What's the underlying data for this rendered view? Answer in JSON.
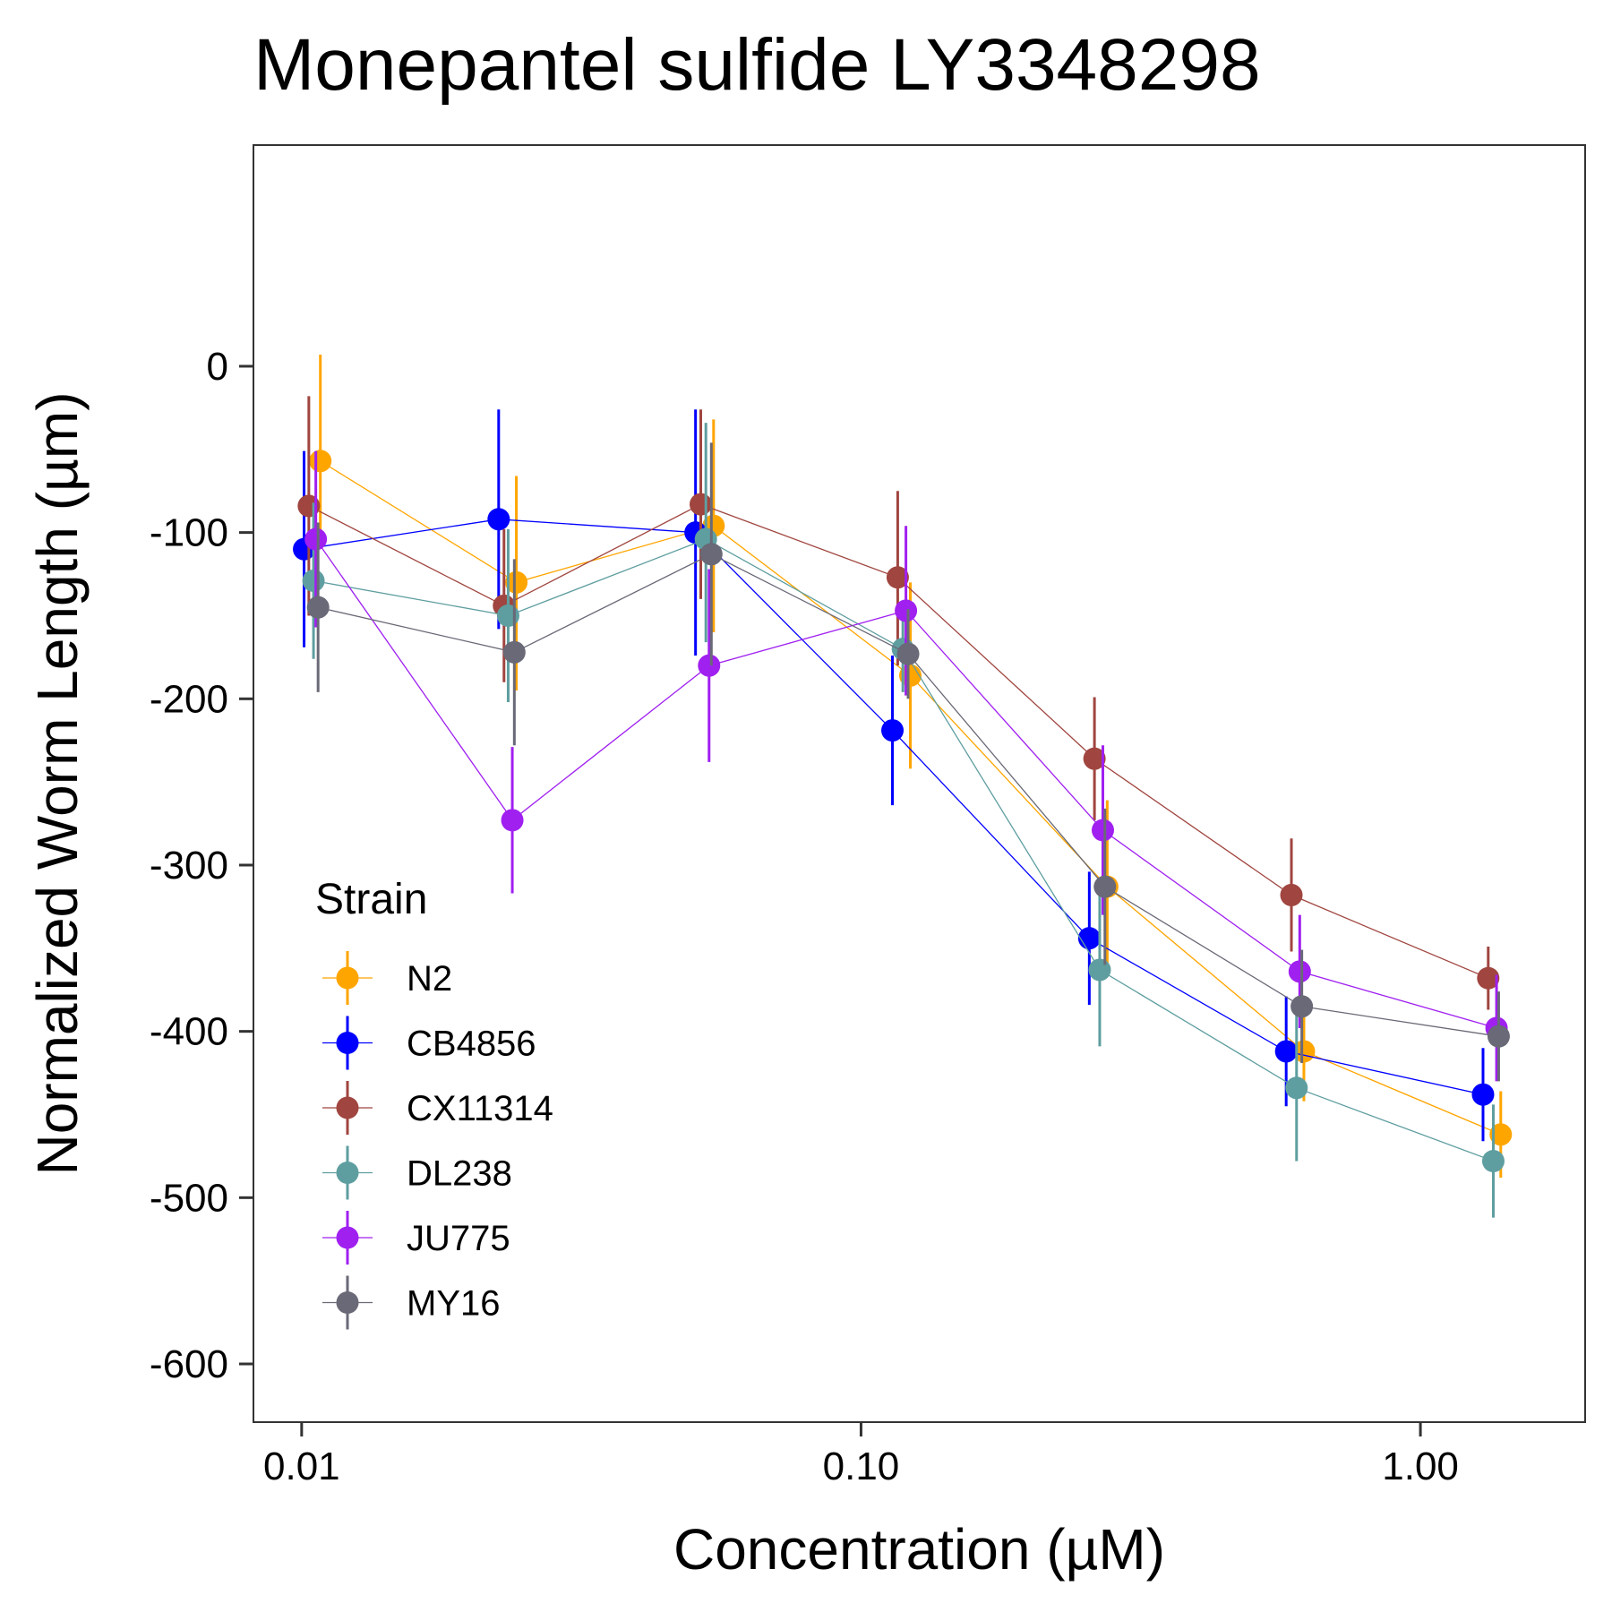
{
  "chart_data": {
    "type": "scatter",
    "title": "Monepantel sulfide LY3348298",
    "xlabel": "Concentration (µM)",
    "ylabel": "Normalized Worm Length (µm)",
    "x_scale": "log10",
    "xlim": [
      0.0082,
      1.97
    ],
    "ylim": [
      -635,
      133
    ],
    "x_ticks": [
      0.01,
      0.1,
      1.0
    ],
    "x_tick_labels": [
      "0.01",
      "0.10",
      "1.00"
    ],
    "y_ticks": [
      0,
      -100,
      -200,
      -300,
      -400,
      -500,
      -600
    ],
    "y_tick_labels": [
      "0",
      "-100",
      "-200",
      "-300",
      "-400",
      "-500",
      "-600"
    ],
    "grid": false,
    "legend": {
      "title": "Strain",
      "position": "bottom-left"
    },
    "series": [
      {
        "name": "N2",
        "color": "#FFA500",
        "x": [
          0.0108,
          0.0242,
          0.0545,
          0.1225,
          0.2755,
          0.619,
          1.392
        ],
        "y": [
          -57,
          -130,
          -96,
          -186,
          -313,
          -412,
          -462
        ],
        "ymin": [
          -108,
          -195,
          -160,
          -242,
          -365,
          -442,
          -488
        ],
        "ymax": [
          7,
          -66,
          -32,
          -130,
          -261,
          -382,
          -436
        ]
      },
      {
        "name": "CB4856",
        "color": "#0000FF",
        "x": [
          0.0101,
          0.0225,
          0.0506,
          0.1138,
          0.2559,
          0.5755,
          1.294
        ],
        "y": [
          -110,
          -92,
          -100,
          -219,
          -344,
          -412,
          -438
        ],
        "ymin": [
          -169,
          -158,
          -174,
          -264,
          -384,
          -445,
          -466
        ],
        "ymax": [
          -51,
          -26,
          -26,
          -174,
          -304,
          -379,
          -410
        ]
      },
      {
        "name": "CX11314",
        "color": "#A0453F",
        "x": [
          0.0103,
          0.023,
          0.0517,
          0.1163,
          0.2614,
          0.588,
          1.322
        ],
        "y": [
          -84,
          -144,
          -83,
          -127,
          -236,
          -318,
          -368
        ],
        "ymin": [
          -150,
          -190,
          -140,
          -180,
          -273,
          -352,
          -387
        ],
        "ymax": [
          -18,
          -98,
          -26,
          -75,
          -199,
          -284,
          -349
        ]
      },
      {
        "name": "DL238",
        "color": "#5F9EA0",
        "x": [
          0.0105,
          0.0234,
          0.0528,
          0.1188,
          0.2671,
          0.6006,
          1.35
        ],
        "y": [
          -129,
          -150,
          -104,
          -170,
          -363,
          -434,
          -478
        ],
        "ymin": [
          -176,
          -202,
          -166,
          -196,
          -409,
          -478,
          -512
        ],
        "ymax": [
          -82,
          -98,
          -34,
          -144,
          -317,
          -390,
          -444
        ]
      },
      {
        "name": "JU775",
        "color": "#A020F0",
        "x": [
          0.0106,
          0.0238,
          0.0535,
          0.1203,
          0.2706,
          0.6085,
          1.368
        ],
        "y": [
          -104,
          -273,
          -180,
          -147,
          -279,
          -364,
          -398
        ],
        "ymin": [
          -157,
          -317,
          -238,
          -198,
          -330,
          -398,
          -430
        ],
        "ymax": [
          -51,
          -229,
          -122,
          -96,
          -228,
          -330,
          -366
        ]
      },
      {
        "name": "MY16",
        "color": "#696977",
        "x": [
          0.0107,
          0.024,
          0.054,
          0.1214,
          0.2729,
          0.6137,
          1.38
        ],
        "y": [
          -145,
          -172,
          -113,
          -173,
          -313,
          -385,
          -403
        ],
        "ymin": [
          -196,
          -228,
          -180,
          -200,
          -360,
          -419,
          -430
        ],
        "ymax": [
          -94,
          -116,
          -46,
          -146,
          -266,
          -351,
          -376
        ]
      }
    ]
  }
}
